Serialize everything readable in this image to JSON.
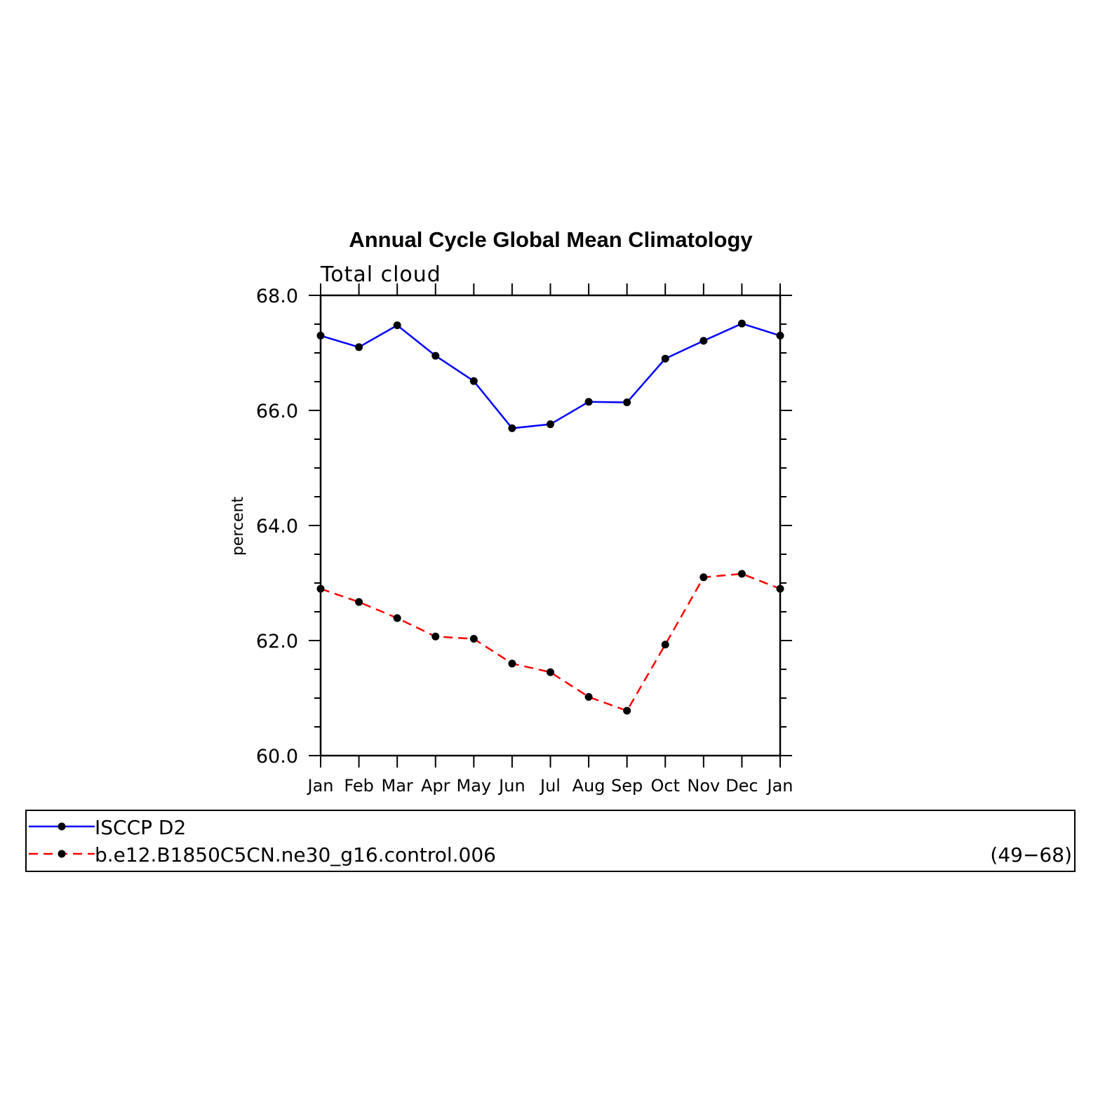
{
  "chart_data": {
    "type": "line",
    "title": "Annual Cycle Global Mean Climatology",
    "subtitle": "Total cloud",
    "ylabel": "percent",
    "xlabel": "",
    "categories": [
      "Jan",
      "Feb",
      "Mar",
      "Apr",
      "May",
      "Jun",
      "Jul",
      "Aug",
      "Sep",
      "Oct",
      "Nov",
      "Dec",
      "Jan"
    ],
    "ylim": [
      60.0,
      68.0
    ],
    "yticks": [
      "60.0",
      "62.0",
      "64.0",
      "66.0",
      "68.0"
    ],
    "grid": false,
    "legend_placement": "below",
    "series": [
      {
        "name": "ISCCP D2",
        "color": "#0000ff",
        "style": "solid",
        "marker": "filled-circle",
        "values": [
          67.3,
          67.1,
          67.48,
          66.95,
          66.51,
          65.69,
          65.76,
          66.15,
          66.14,
          66.9,
          67.21,
          67.51,
          67.3
        ]
      },
      {
        "name": "b.e12.B1850C5CN.ne30_g16.control.006",
        "note": "(49−68)",
        "color": "#ff0000",
        "style": "dashed",
        "marker": "filled-circle",
        "values": [
          62.9,
          62.67,
          62.39,
          62.07,
          62.03,
          61.6,
          61.45,
          61.02,
          60.78,
          61.93,
          63.1,
          63.16,
          62.9
        ]
      }
    ]
  }
}
